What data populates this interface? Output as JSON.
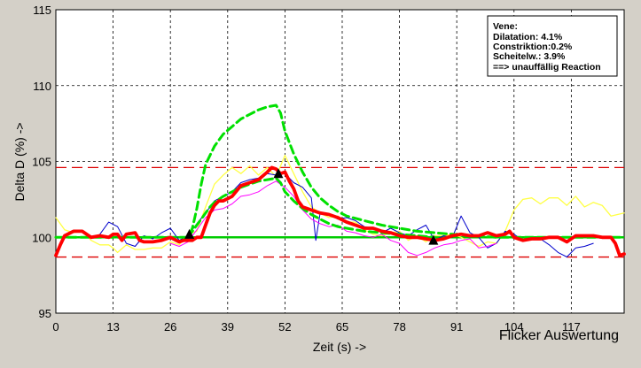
{
  "chart_data": {
    "type": "line",
    "title": "",
    "caption": "Flicker Auswertung",
    "xlabel": "Zeit (s) ->",
    "ylabel": "Delta D (%) ->",
    "xlim": [
      0,
      129
    ],
    "ylim": [
      95,
      115
    ],
    "xticks": [
      0,
      13,
      26,
      39,
      52,
      65,
      78,
      91,
      104,
      117
    ],
    "yticks": [
      95,
      100,
      105,
      110,
      115
    ],
    "grid": true,
    "colors": {
      "background": "#d4d0c8",
      "plot": "#ffffff",
      "main": "#ff0000",
      "model": "#00e000",
      "baseline": "#00cc00",
      "limit": "#dd0000",
      "yellow": "#ffff44",
      "blue": "#0000cc",
      "magenta": "#ff00ff"
    },
    "reference_lines": {
      "baseline": 100,
      "upper_limit": 104.6,
      "lower_limit": 98.7
    },
    "info_box": {
      "lines": [
        "Vene:",
        "Dilatation:  4.1%",
        "Constriktion:0.2%",
        "Scheitelw.: 3.9%",
        "==> unauffällig Reaction"
      ]
    },
    "markers": [
      {
        "x": 30.3,
        "y": 100.2
      },
      {
        "x": 50.5,
        "y": 104.2
      },
      {
        "x": 85.7,
        "y": 99.8
      }
    ],
    "series": [
      {
        "role": "main",
        "x": [
          0,
          1,
          2,
          4,
          6,
          8,
          10,
          12,
          13,
          14,
          15,
          16,
          18,
          19,
          20,
          21,
          22,
          24,
          26,
          28,
          29,
          30,
          31,
          32,
          33,
          34,
          35,
          36,
          37,
          38,
          40,
          42,
          44,
          46,
          48,
          49,
          50,
          51,
          52,
          53,
          54,
          55,
          56,
          58,
          60,
          62,
          64,
          66,
          68,
          70,
          72,
          74,
          76,
          78,
          80,
          82,
          84,
          86,
          88,
          90,
          92,
          94,
          96,
          98,
          100,
          102,
          103,
          104,
          106,
          108,
          110,
          112,
          114,
          116,
          118,
          120,
          122,
          124,
          126,
          127,
          128,
          129
        ],
        "y": [
          98.8,
          99.5,
          100.1,
          100.4,
          100.4,
          100.0,
          100.1,
          100.0,
          100.2,
          100.2,
          99.8,
          100.2,
          100.3,
          99.8,
          99.7,
          99.7,
          99.7,
          99.8,
          100.0,
          99.7,
          99.8,
          99.8,
          99.8,
          100.0,
          100.0,
          100.8,
          101.6,
          102.1,
          102.4,
          102.4,
          102.7,
          103.4,
          103.6,
          103.8,
          104.3,
          104.6,
          104.5,
          104.2,
          104.3,
          103.7,
          103.2,
          102.4,
          102.0,
          101.8,
          101.6,
          101.5,
          101.3,
          101.0,
          100.8,
          100.6,
          100.6,
          100.4,
          100.3,
          100.1,
          100.0,
          100.0,
          99.9,
          99.8,
          99.9,
          100.1,
          100.2,
          100.1,
          100.1,
          100.3,
          100.1,
          100.2,
          100.4,
          100.0,
          99.8,
          99.9,
          99.9,
          100.0,
          100.0,
          99.7,
          100.1,
          100.1,
          100.1,
          100.0,
          100.0,
          99.6,
          98.8,
          98.9
        ]
      },
      {
        "role": "model-upper",
        "x": [
          0,
          26,
          30,
          31,
          32,
          33,
          34,
          36,
          38,
          40,
          42,
          44,
          46,
          48,
          50,
          51,
          52,
          54,
          56,
          58,
          60,
          62,
          64,
          66,
          70,
          74,
          78,
          82,
          86,
          90,
          95,
          100,
          129
        ],
        "y": [
          100,
          100,
          100,
          100.6,
          101.9,
          103.5,
          104.8,
          106.0,
          106.8,
          107.3,
          107.8,
          108.1,
          108.4,
          108.6,
          108.7,
          108.2,
          107.0,
          105.5,
          104.3,
          103.3,
          102.6,
          102.1,
          101.7,
          101.4,
          101.1,
          100.8,
          100.6,
          100.4,
          100.3,
          100.2,
          100.1,
          100.0,
          100
        ]
      },
      {
        "role": "model-lower",
        "x": [
          30,
          31,
          32,
          33,
          34,
          35,
          36,
          38,
          40,
          42,
          44,
          46,
          48,
          50,
          51,
          52,
          54,
          56,
          58,
          60,
          62,
          64,
          66,
          70,
          74,
          78,
          82,
          86
        ],
        "y": [
          100,
          100.4,
          100.8,
          101.2,
          101.6,
          102.0,
          102.3,
          102.7,
          103.0,
          103.3,
          103.5,
          103.7,
          103.8,
          103.9,
          103.6,
          103.0,
          102.4,
          101.9,
          101.5,
          101.2,
          100.9,
          100.7,
          100.6,
          100.4,
          100.3,
          100.2,
          100.1,
          100.0
        ]
      },
      {
        "role": "yellow",
        "x": [
          0,
          2,
          4,
          6,
          8,
          10,
          12,
          13,
          14,
          16,
          18,
          20,
          22,
          24,
          26,
          28,
          30,
          32,
          34,
          36,
          38,
          40,
          42,
          44,
          46,
          48,
          50,
          52,
          54,
          56,
          58,
          60,
          62,
          64,
          66,
          68,
          70,
          72,
          74,
          76,
          78,
          80,
          82,
          84,
          86,
          88,
          90,
          92,
          94,
          96,
          98,
          100,
          102,
          104,
          106,
          108,
          110,
          112,
          114,
          116,
          118,
          120,
          122,
          124,
          126,
          129
        ],
        "y": [
          101.3,
          100.5,
          100.3,
          100.4,
          99.8,
          99.5,
          99.5,
          99.3,
          99.0,
          99.5,
          99.2,
          99.2,
          99.3,
          99.3,
          99.7,
          99.5,
          100.2,
          100.4,
          102.0,
          103.5,
          104.1,
          104.6,
          104.2,
          104.7,
          104.1,
          104.6,
          104.0,
          105.4,
          104.2,
          103.0,
          102.0,
          101.6,
          101.3,
          101.4,
          101.0,
          101.0,
          100.5,
          100.2,
          100.1,
          100.3,
          100.4,
          99.8,
          100.1,
          99.7,
          100.1,
          100.1,
          100.2,
          100.0,
          99.7,
          99.4,
          99.7,
          99.6,
          100.4,
          101.8,
          102.5,
          102.6,
          102.2,
          102.6,
          102.6,
          102.1,
          102.7,
          102.0,
          102.3,
          102.1,
          101.4,
          101.6
        ]
      },
      {
        "role": "blue",
        "x": [
          10,
          12,
          14,
          16,
          18,
          20,
          22,
          24,
          26,
          28,
          30,
          32,
          34,
          36,
          38,
          40,
          42,
          44,
          46,
          48,
          50,
          52,
          54,
          56,
          58,
          59,
          60,
          62,
          64,
          66,
          68,
          70,
          72,
          74,
          76,
          78,
          80,
          82,
          84,
          86,
          88,
          90,
          92,
          94,
          96,
          98,
          100,
          102,
          104,
          106,
          108,
          110,
          112,
          114,
          116,
          118,
          120,
          122
        ],
        "y": [
          100.2,
          101.0,
          100.7,
          99.6,
          99.4,
          100.1,
          99.9,
          100.3,
          100.6,
          99.8,
          100.1,
          100.9,
          101.6,
          102.4,
          102.7,
          103.0,
          103.6,
          103.8,
          103.9,
          104.2,
          104.1,
          104.2,
          103.6,
          103.3,
          102.6,
          99.8,
          101.6,
          101.5,
          101.2,
          101.3,
          101.1,
          100.7,
          100.6,
          100.3,
          100.6,
          100.3,
          100.1,
          100.5,
          100.8,
          99.8,
          100.1,
          100.0,
          101.4,
          100.3,
          100.0,
          99.3,
          99.6,
          100.4,
          100.2,
          99.8,
          99.9,
          99.9,
          99.5,
          99.0,
          98.7,
          99.3,
          99.4,
          99.6
        ]
      },
      {
        "role": "magenta",
        "x": [
          26,
          28,
          30,
          32,
          34,
          36,
          38,
          40,
          42,
          44,
          46,
          48,
          50,
          52,
          54,
          56,
          58,
          60,
          62,
          64,
          66,
          68,
          70,
          72,
          74,
          76,
          78,
          80,
          82,
          84,
          86,
          88,
          90,
          92,
          94,
          96,
          98,
          100
        ],
        "y": [
          99.6,
          99.4,
          99.7,
          100.5,
          101.3,
          101.8,
          101.9,
          102.2,
          102.7,
          102.8,
          103.0,
          103.4,
          103.7,
          103.3,
          102.7,
          101.8,
          101.2,
          100.9,
          100.7,
          100.8,
          100.4,
          100.3,
          100.1,
          100.0,
          100.2,
          99.8,
          99.6,
          99.0,
          98.8,
          99.0,
          99.3,
          99.5,
          99.6,
          99.8,
          99.9,
          99.3,
          99.4,
          99.6
        ]
      }
    ]
  }
}
